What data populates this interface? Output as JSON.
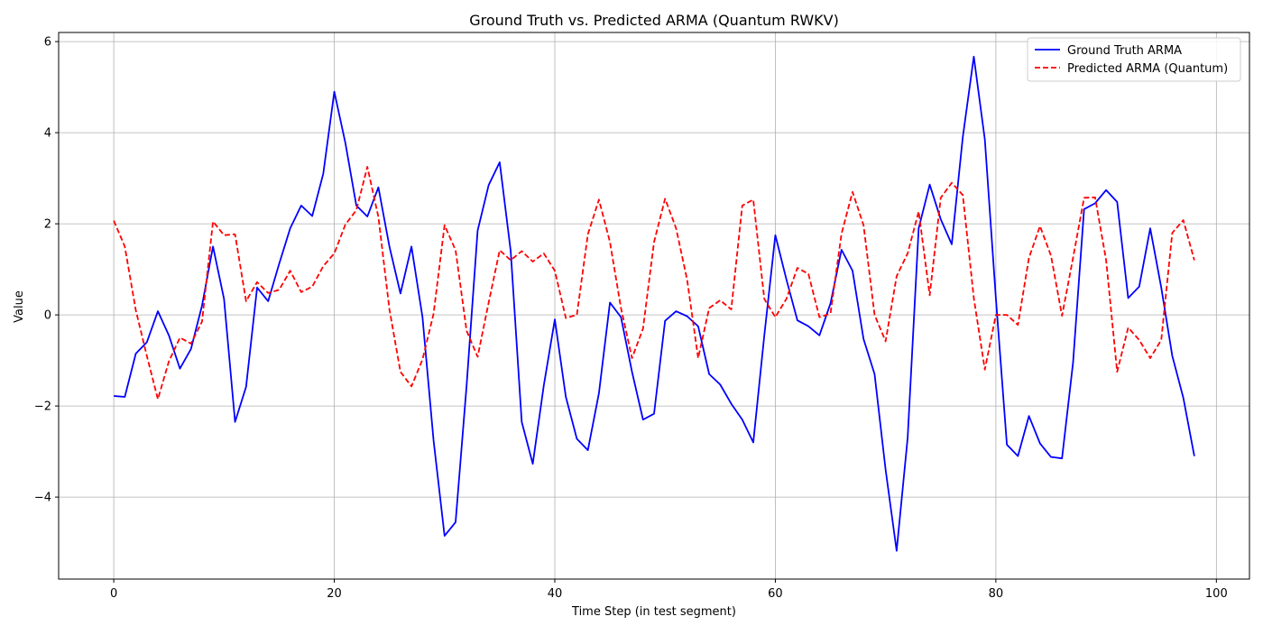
{
  "chart_data": {
    "type": "line",
    "title": "Ground Truth vs. Predicted ARMA (Quantum RWKV)",
    "xlabel": "Time Step (in test segment)",
    "ylabel": "Value",
    "xlim": [
      -5,
      103
    ],
    "ylim": [
      -5.8,
      6.2
    ],
    "x_ticks": [
      0,
      20,
      40,
      60,
      80,
      100
    ],
    "y_ticks": [
      -4,
      -2,
      0,
      2,
      4,
      6
    ],
    "x_tick_labels": [
      "0",
      "20",
      "40",
      "60",
      "80",
      "100"
    ],
    "y_tick_labels": [
      "−4",
      "−2",
      "0",
      "2",
      "4",
      "6"
    ],
    "grid": true,
    "legend_position": "top-right",
    "series": [
      {
        "name": "Ground Truth ARMA",
        "color": "#0000ff",
        "style": "solid",
        "values": [
          -1.78,
          -1.8,
          -0.85,
          -0.6,
          0.08,
          -0.45,
          -1.18,
          -0.75,
          0.2,
          1.5,
          0.35,
          -2.35,
          -1.58,
          0.6,
          0.3,
          1.12,
          1.9,
          2.4,
          2.17,
          3.1,
          4.9,
          3.78,
          2.4,
          2.16,
          2.8,
          1.5,
          0.47,
          1.5,
          -0.05,
          -2.75,
          -4.85,
          -4.55,
          -1.55,
          1.85,
          2.85,
          3.35,
          1.4,
          -2.35,
          -3.27,
          -1.55,
          -0.1,
          -1.8,
          -2.72,
          -2.97,
          -1.72,
          0.27,
          -0.05,
          -1.25,
          -2.3,
          -2.17,
          -0.13,
          0.08,
          -0.03,
          -0.25,
          -1.3,
          -1.53,
          -1.95,
          -2.3,
          -2.8,
          -0.45,
          1.75,
          0.78,
          -0.12,
          -0.25,
          -0.45,
          0.25,
          1.43,
          0.97,
          -0.53,
          -1.3,
          -3.4,
          -5.18,
          -2.7,
          1.9,
          2.86,
          2.1,
          1.55,
          3.9,
          5.67,
          3.85,
          0.37,
          -2.85,
          -3.1,
          -2.22,
          -2.82,
          -3.12,
          -3.15,
          -1.05,
          2.32,
          2.45,
          2.74,
          2.48,
          0.37,
          0.62,
          1.9,
          0.6,
          -0.9,
          -1.82,
          -3.1
        ]
      },
      {
        "name": "Predicted ARMA (Quantum)",
        "color": "#ff0000",
        "style": "dashed",
        "values": [
          2.07,
          1.5,
          0.1,
          -0.9,
          -1.85,
          -1.02,
          -0.5,
          -0.63,
          -0.15,
          2.05,
          1.75,
          1.77,
          0.3,
          0.72,
          0.48,
          0.55,
          0.97,
          0.5,
          0.62,
          1.07,
          1.35,
          1.98,
          2.3,
          3.25,
          2.15,
          0.12,
          -1.25,
          -1.57,
          -0.98,
          0.02,
          1.97,
          1.42,
          -0.35,
          -0.92,
          0.27,
          1.42,
          1.2,
          1.4,
          1.17,
          1.35,
          0.97,
          -0.07,
          0.0,
          1.77,
          2.53,
          1.6,
          0.15,
          -0.95,
          -0.3,
          1.6,
          2.55,
          1.9,
          0.77,
          -0.95,
          0.15,
          0.32,
          0.12,
          2.4,
          2.53,
          0.35,
          -0.05,
          0.35,
          1.03,
          0.9,
          -0.05,
          0.03,
          1.78,
          2.7,
          1.97,
          0.0,
          -0.58,
          0.85,
          1.35,
          2.27,
          0.43,
          2.57,
          2.9,
          2.63,
          0.37,
          -1.2,
          0.0,
          0.0,
          -0.22,
          1.25,
          1.95,
          1.3,
          -0.02,
          1.25,
          2.57,
          2.58,
          1.2,
          -1.25,
          -0.28,
          -0.55,
          -0.95,
          -0.55,
          1.8,
          2.08,
          1.2
        ]
      }
    ]
  }
}
